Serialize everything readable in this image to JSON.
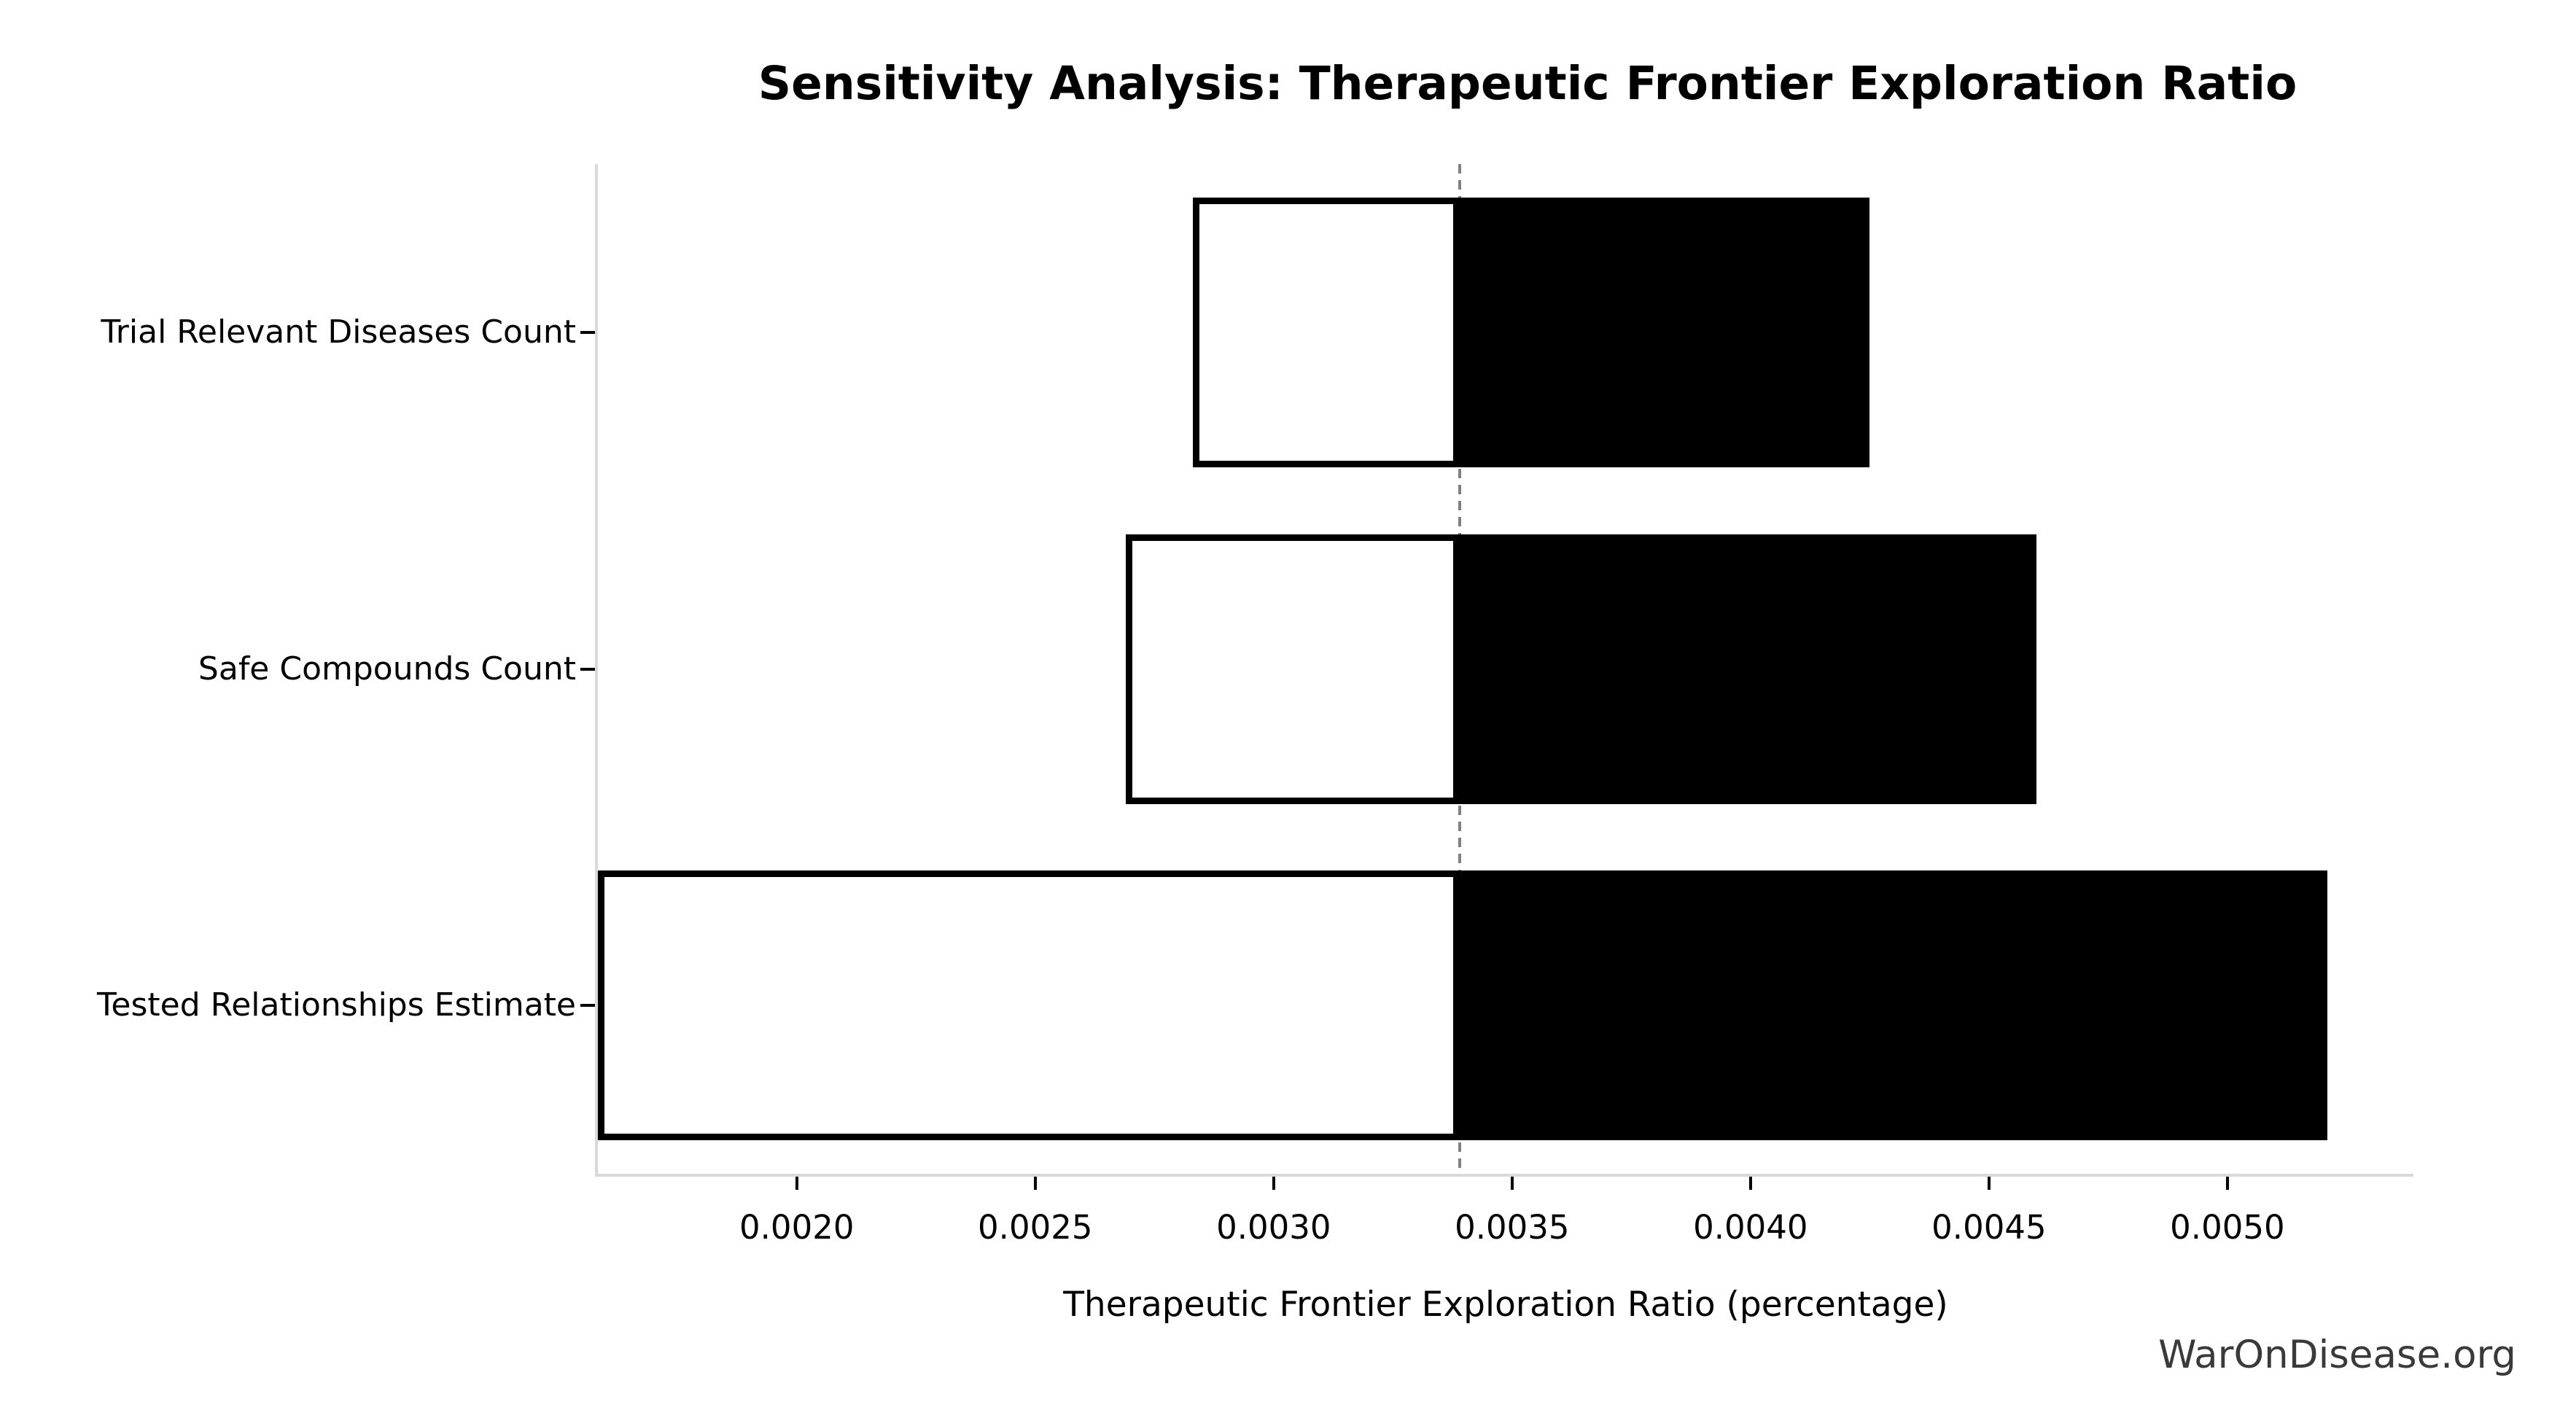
{
  "title": "Sensitivity Analysis: Therapeutic Frontier Exploration Ratio",
  "watermark": "WarOnDisease.org",
  "chart_data": {
    "type": "bar",
    "subtype": "tornado-sensitivity",
    "orientation": "horizontal",
    "title": "Sensitivity Analysis: Therapeutic Frontier Exploration Ratio",
    "xlabel": "Therapeutic Frontier Exploration Ratio (percentage)",
    "ylabel": "",
    "categories": [
      "Trial Relevant Diseases Count",
      "Safe Compounds Count",
      "Tested Relationships Estimate"
    ],
    "baseline": 0.00339,
    "series": [
      {
        "name": "Trial Relevant Diseases Count",
        "low": 0.00283,
        "high": 0.00425
      },
      {
        "name": "Safe Compounds Count",
        "low": 0.00269,
        "high": 0.0046
      },
      {
        "name": "Tested Relationships Estimate",
        "low": 0.00158,
        "high": 0.00521
      }
    ],
    "xlim": [
      0.001583,
      0.00539
    ],
    "xticks": [
      0.002,
      0.0025,
      0.003,
      0.0035,
      0.004,
      0.0045,
      0.005
    ],
    "xtick_labels": [
      "0.0020",
      "0.0025",
      "0.0030",
      "0.0035",
      "0.0040",
      "0.0045",
      "0.0050"
    ],
    "grid": false,
    "legend": "none",
    "colors": {
      "low_fill": "#ffffff",
      "low_edge": "#000000",
      "high_fill": "#000000",
      "baseline_line": "#808080",
      "spine": "#d9d9d9",
      "tick": "#000000",
      "text": "#000000",
      "watermark": "#3a3a3a",
      "background": "#ffffff"
    }
  }
}
